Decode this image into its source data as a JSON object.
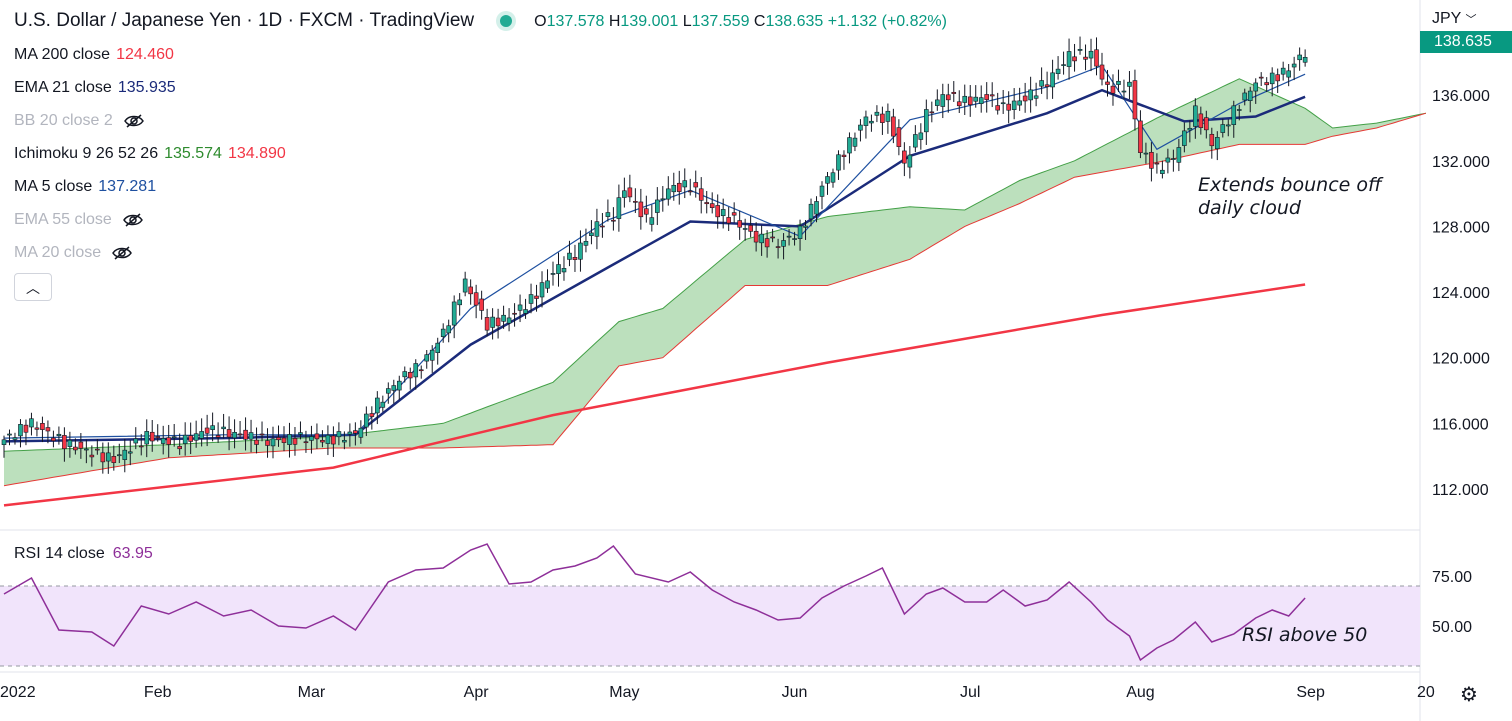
{
  "header": {
    "symbol": "U.S. Dollar / Japanese Yen",
    "interval": "1D",
    "source": "FXCM",
    "platform": "TradingView",
    "sep": "·",
    "open_label": "O",
    "open": "137.578",
    "high_label": "H",
    "high": "139.001",
    "low_label": "L",
    "low": "137.559",
    "close_label": "C",
    "close": "138.635",
    "change": "+1.132 (+0.82%)"
  },
  "indicators": [
    {
      "label": "MA 200 close",
      "value": "124.460",
      "color": "#f23645",
      "hidden": false
    },
    {
      "label": "EMA 21 close",
      "value": "135.935",
      "color": "#1b2b7a",
      "hidden": false
    },
    {
      "label": "BB 20 close 2",
      "value": "",
      "color": "#b2b5be",
      "hidden": true
    },
    {
      "label": "Ichimoku 9 26 52 26",
      "value": "135.574",
      "value2": "134.890",
      "color": "#2e8b2e",
      "color2": "#f23645",
      "hidden": false
    },
    {
      "label": "MA 5 close",
      "value": "137.281",
      "color": "#1e50a0",
      "hidden": false
    },
    {
      "label": "EMA 55 close",
      "value": "",
      "color": "#b2b5be",
      "hidden": true
    },
    {
      "label": "MA 20 close",
      "value": "",
      "color": "#b2b5be",
      "hidden": true
    }
  ],
  "collapse_icon": "chevron-up-icon",
  "currency": "JPY",
  "current_price": "138.635",
  "annotations": {
    "price": "Extends bounce off\ndaily cloud",
    "rsi": "RSI above 50"
  },
  "rsi": {
    "label": "RSI 14 close",
    "value": "63.95",
    "color": "#8e2f99"
  },
  "settings_icon": "gear-icon",
  "colors": {
    "up": "#22ab94",
    "down": "#f23645",
    "cloud_bull": "#a5d6a7",
    "cloud_bear": "#f7a1a6",
    "rsi_band": "#f1e4fb",
    "ma200": "#f23645",
    "ema21": "#1b2b7a",
    "ma5": "#1e50a0"
  },
  "chart_data": {
    "type": "candlestick",
    "instrument": "USDJPY",
    "xaxis_ticks": [
      "2022",
      "Feb",
      "Mar",
      "Apr",
      "May",
      "Jun",
      "Jul",
      "Aug",
      "Sep",
      "20"
    ],
    "yaxis_ticks": [
      "136.000",
      "132.000",
      "128.000",
      "124.000",
      "120.000",
      "116.000",
      "112.000"
    ],
    "ylim": [
      109.5,
      141.8
    ],
    "close_points": [
      [
        0,
        115.0
      ],
      [
        5,
        116.0
      ],
      [
        11,
        114.8
      ],
      [
        16,
        114.2
      ],
      [
        20,
        113.8
      ],
      [
        26,
        115.2
      ],
      [
        32,
        114.8
      ],
      [
        37,
        115.6
      ],
      [
        43,
        115.3
      ],
      [
        48,
        114.9
      ],
      [
        54,
        115.1
      ],
      [
        59,
        115.0
      ],
      [
        64,
        115.4
      ],
      [
        68,
        117.2
      ],
      [
        72,
        118.7
      ],
      [
        76,
        119.5
      ],
      [
        80,
        121.5
      ],
      [
        84,
        124.6
      ],
      [
        88,
        122.0
      ],
      [
        92,
        122.5
      ],
      [
        96,
        123.5
      ],
      [
        100,
        125.2
      ],
      [
        104,
        126.3
      ],
      [
        108,
        128.1
      ],
      [
        111,
        128.7
      ],
      [
        113,
        130.3
      ],
      [
        117,
        128.4
      ],
      [
        121,
        130.3
      ],
      [
        125,
        130.5
      ],
      [
        129,
        129.0
      ],
      [
        133,
        128.4
      ],
      [
        137,
        127.3
      ],
      [
        141,
        126.9
      ],
      [
        145,
        127.7
      ],
      [
        149,
        130.4
      ],
      [
        153,
        132.6
      ],
      [
        157,
        134.6
      ],
      [
        161,
        134.7
      ],
      [
        164,
        131.8
      ],
      [
        168,
        134.8
      ],
      [
        171,
        136.0
      ],
      [
        175,
        135.6
      ],
      [
        179,
        135.9
      ],
      [
        182,
        135.2
      ],
      [
        186,
        135.8
      ],
      [
        190,
        136.8
      ],
      [
        194,
        138.4
      ],
      [
        198,
        138.5
      ],
      [
        201,
        136.4
      ],
      [
        205,
        136.6
      ],
      [
        207,
        132.6
      ],
      [
        210,
        131.5
      ],
      [
        213,
        132.2
      ],
      [
        217,
        135.0
      ],
      [
        220,
        133.0
      ],
      [
        224,
        135.0
      ],
      [
        228,
        136.8
      ],
      [
        231,
        137.0
      ],
      [
        234,
        137.6
      ],
      [
        237,
        138.6
      ]
    ],
    "ma200_points": [
      [
        0,
        111.0
      ],
      [
        60,
        113.3
      ],
      [
        100,
        116.5
      ],
      [
        150,
        119.7
      ],
      [
        200,
        122.6
      ],
      [
        237,
        124.46
      ]
    ],
    "ema21_points": [
      [
        0,
        114.9
      ],
      [
        40,
        115.1
      ],
      [
        64,
        115.3
      ],
      [
        85,
        120.8
      ],
      [
        110,
        125.5
      ],
      [
        125,
        128.3
      ],
      [
        145,
        128.0
      ],
      [
        165,
        132.3
      ],
      [
        190,
        134.9
      ],
      [
        200,
        136.3
      ],
      [
        215,
        134.4
      ],
      [
        228,
        134.7
      ],
      [
        237,
        135.9
      ]
    ],
    "ma5_points": [
      [
        0,
        115.1
      ],
      [
        40,
        115.3
      ],
      [
        64,
        115.3
      ],
      [
        85,
        123.0
      ],
      [
        110,
        128.4
      ],
      [
        125,
        130.2
      ],
      [
        145,
        127.4
      ],
      [
        165,
        134.5
      ],
      [
        190,
        136.5
      ],
      [
        200,
        137.8
      ],
      [
        210,
        132.7
      ],
      [
        225,
        135.5
      ],
      [
        237,
        137.28
      ]
    ],
    "cloud_span_a": [
      [
        0,
        114.3
      ],
      [
        30,
        114.7
      ],
      [
        60,
        115.2
      ],
      [
        80,
        116.0
      ],
      [
        100,
        118.5
      ],
      [
        112,
        122.2
      ],
      [
        120,
        123.0
      ],
      [
        135,
        127.2
      ],
      [
        150,
        128.6
      ],
      [
        165,
        129.2
      ],
      [
        175,
        129.0
      ],
      [
        185,
        130.8
      ],
      [
        195,
        132.0
      ],
      [
        210,
        134.6
      ],
      [
        225,
        137.0
      ],
      [
        237,
        135.2
      ],
      [
        242,
        134.0
      ],
      [
        250,
        134.3
      ],
      [
        259,
        134.9
      ]
    ],
    "cloud_span_b": [
      [
        0,
        112.2
      ],
      [
        30,
        113.9
      ],
      [
        60,
        114.5
      ],
      [
        80,
        114.5
      ],
      [
        100,
        114.7
      ],
      [
        112,
        119.5
      ],
      [
        120,
        120.0
      ],
      [
        135,
        124.4
      ],
      [
        150,
        124.4
      ],
      [
        165,
        126.0
      ],
      [
        175,
        128.0
      ],
      [
        185,
        129.4
      ],
      [
        195,
        131.0
      ],
      [
        210,
        131.9
      ],
      [
        225,
        133.0
      ],
      [
        237,
        133.0
      ],
      [
        242,
        133.5
      ],
      [
        250,
        134.0
      ],
      [
        259,
        134.9
      ]
    ],
    "rsi_points": [
      [
        0,
        66
      ],
      [
        5,
        74
      ],
      [
        10,
        48
      ],
      [
        16,
        47
      ],
      [
        20,
        40
      ],
      [
        25,
        60
      ],
      [
        30,
        56
      ],
      [
        35,
        62
      ],
      [
        40,
        55
      ],
      [
        45,
        58
      ],
      [
        50,
        50
      ],
      [
        55,
        49
      ],
      [
        60,
        55
      ],
      [
        64,
        48
      ],
      [
        70,
        72
      ],
      [
        75,
        78
      ],
      [
        80,
        79
      ],
      [
        85,
        88
      ],
      [
        88,
        91
      ],
      [
        92,
        71
      ],
      [
        96,
        72
      ],
      [
        100,
        78
      ],
      [
        104,
        80
      ],
      [
        108,
        84
      ],
      [
        111,
        90
      ],
      [
        115,
        76
      ],
      [
        121,
        72
      ],
      [
        125,
        77
      ],
      [
        129,
        68
      ],
      [
        133,
        62
      ],
      [
        137,
        58
      ],
      [
        141,
        53
      ],
      [
        145,
        54
      ],
      [
        149,
        64
      ],
      [
        153,
        70
      ],
      [
        157,
        75
      ],
      [
        160,
        79
      ],
      [
        164,
        56
      ],
      [
        168,
        66
      ],
      [
        171,
        69
      ],
      [
        175,
        62
      ],
      [
        179,
        62
      ],
      [
        182,
        68
      ],
      [
        186,
        60
      ],
      [
        190,
        63
      ],
      [
        194,
        72
      ],
      [
        198,
        62
      ],
      [
        201,
        53
      ],
      [
        205,
        45
      ],
      [
        207,
        33
      ],
      [
        210,
        39
      ],
      [
        213,
        43
      ],
      [
        217,
        52
      ],
      [
        220,
        42
      ],
      [
        224,
        46
      ],
      [
        228,
        54
      ],
      [
        231,
        58
      ],
      [
        234,
        55
      ],
      [
        237,
        64
      ]
    ],
    "rsi_ylim": [
      28,
      95
    ],
    "rsi_ticks": [
      "75.00",
      "50.00"
    ],
    "rsi_band": [
      30,
      70
    ]
  }
}
